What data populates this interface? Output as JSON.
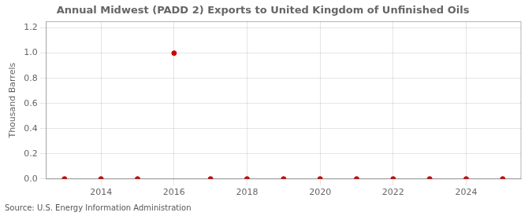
{
  "chart_data": {
    "type": "scatter",
    "title": "Annual Midwest (PADD 2) Exports to United Kingdom of Unfinished Oils",
    "y_label": "Thousand Barrels",
    "source": "Source: U.S. Energy Information Administration",
    "x": [
      2013,
      2014,
      2015,
      2016,
      2017,
      2018,
      2019,
      2020,
      2021,
      2022,
      2023,
      2024,
      2025
    ],
    "values": [
      0,
      0,
      0,
      1.0,
      0,
      0,
      0,
      0,
      0,
      0,
      0,
      0,
      0
    ],
    "color": "#cc0000",
    "xlim": [
      2012.5,
      2025.5
    ],
    "xticks": [
      2014,
      2016,
      2018,
      2020,
      2022,
      2024
    ],
    "ylim": [
      0.0,
      1.25
    ],
    "yticks": [
      {
        "value": 0.0,
        "label": "0.0"
      },
      0.2,
      0.4,
      0.6,
      0.8,
      {
        "value": 1.0,
        "label": "1.0"
      },
      1.2
    ],
    "grid": true
  }
}
